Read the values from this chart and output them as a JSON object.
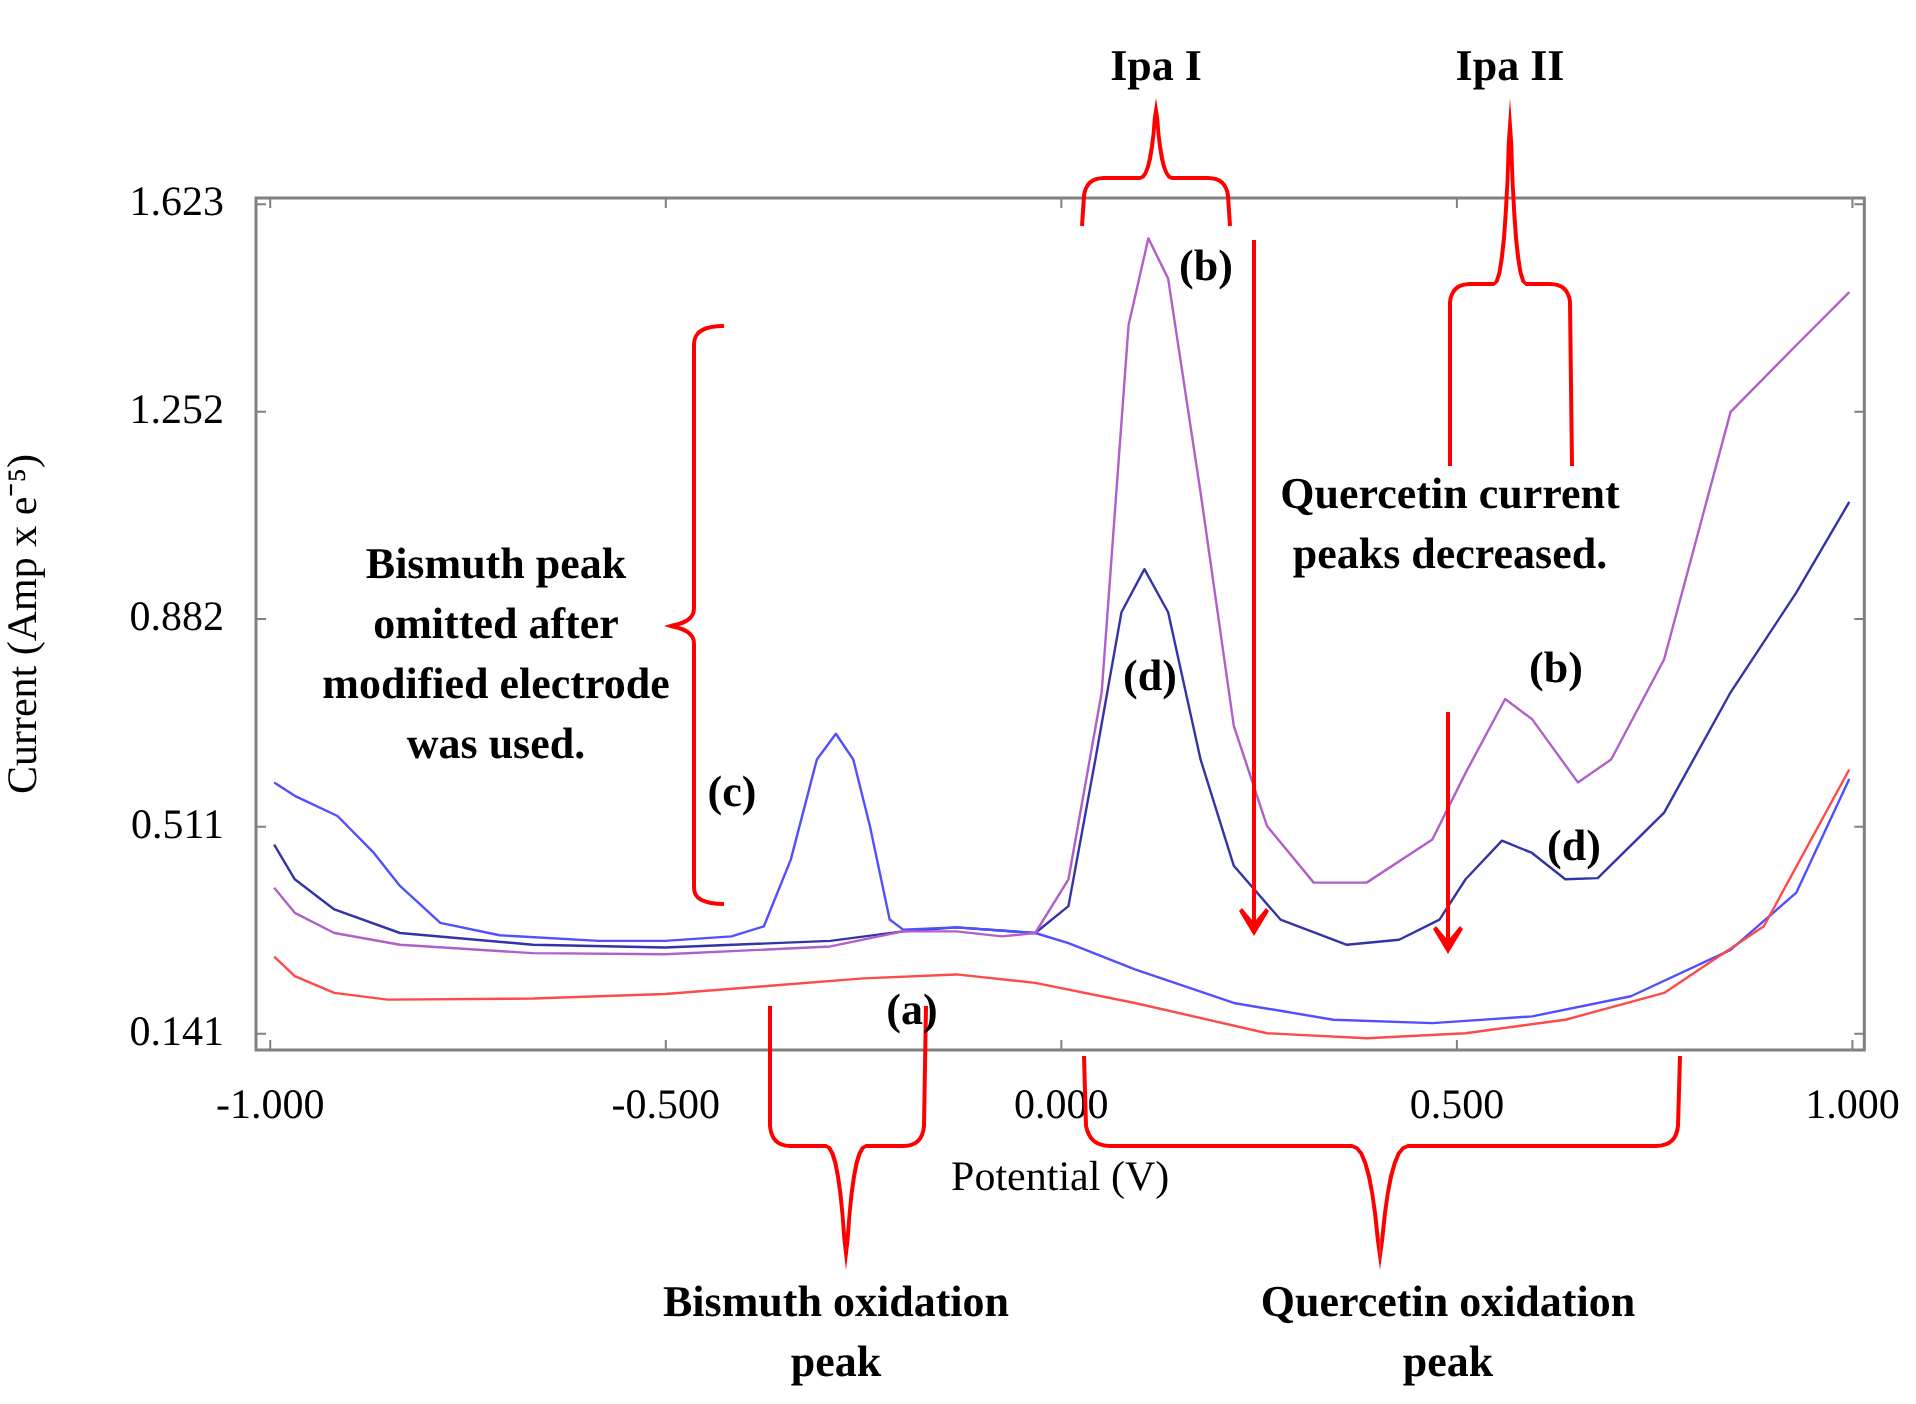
{
  "chart_data": {
    "type": "line",
    "xlabel": "Potential (V)",
    "ylabel": "Current (Amp x e⁻⁵)",
    "xlim": [
      -1.018,
      1.015
    ],
    "ylim": [
      0.112,
      1.634
    ],
    "xticks": [
      {
        "value": -1,
        "label": "-1.000"
      },
      {
        "value": -0.5,
        "label": "-0.500"
      },
      {
        "value": 0,
        "label": "0.000"
      },
      {
        "value": 0.5,
        "label": "0.500"
      },
      {
        "value": 1,
        "label": "1.000"
      }
    ],
    "yticks": [
      0.141,
      0.511,
      0.882,
      1.252,
      1.623
    ],
    "grid": false,
    "legend": false,
    "series": [
      {
        "color": "#ff4a4a",
        "x": [
          -0.995,
          -0.969,
          -0.919,
          -0.852,
          -0.668,
          -0.501,
          -0.376,
          -0.25,
          -0.133,
          -0.033,
          0.093,
          0.26,
          0.386,
          0.511,
          0.637,
          0.762,
          0.888,
          0.996
        ],
        "values": [
          0.279,
          0.244,
          0.214,
          0.202,
          0.204,
          0.212,
          0.226,
          0.24,
          0.247,
          0.232,
          0.196,
          0.142,
          0.133,
          0.142,
          0.166,
          0.214,
          0.333,
          0.613
        ]
      },
      {
        "color": "#b060c8",
        "x": [
          -0.995,
          -0.969,
          -0.919,
          -0.836,
          -0.668,
          -0.501,
          -0.292,
          -0.2,
          -0.133,
          -0.075,
          -0.033,
          0.009,
          0.051,
          0.085,
          0.11,
          0.135,
          0.176,
          0.218,
          0.26,
          0.319,
          0.386,
          0.469,
          0.511,
          0.561,
          0.595,
          0.653,
          0.695,
          0.762,
          0.846,
          0.929,
          0.996
        ],
        "values": [
          0.402,
          0.357,
          0.321,
          0.3,
          0.285,
          0.283,
          0.297,
          0.324,
          0.324,
          0.315,
          0.321,
          0.417,
          0.751,
          1.407,
          1.562,
          1.49,
          1.108,
          0.691,
          0.512,
          0.411,
          0.411,
          0.488,
          0.607,
          0.739,
          0.703,
          0.59,
          0.631,
          0.81,
          1.252,
          1.371,
          1.466
        ]
      },
      {
        "color": "#5050ff",
        "x": [
          -0.995,
          -0.969,
          -0.915,
          -0.869,
          -0.836,
          -0.785,
          -0.71,
          -0.585,
          -0.501,
          -0.417,
          -0.376,
          -0.342,
          -0.309,
          -0.285,
          -0.263,
          -0.242,
          -0.217,
          -0.2,
          -0.133,
          -0.033,
          0.009,
          0.093,
          0.218,
          0.344,
          0.469,
          0.595,
          0.72,
          0.846,
          0.929,
          0.996
        ],
        "values": [
          0.59,
          0.566,
          0.53,
          0.464,
          0.405,
          0.339,
          0.317,
          0.307,
          0.307,
          0.315,
          0.333,
          0.452,
          0.631,
          0.677,
          0.631,
          0.512,
          0.345,
          0.327,
          0.331,
          0.321,
          0.303,
          0.256,
          0.196,
          0.166,
          0.16,
          0.172,
          0.208,
          0.291,
          0.393,
          0.596
        ]
      },
      {
        "color": "#3434a8",
        "x": [
          -0.995,
          -0.969,
          -0.919,
          -0.836,
          -0.668,
          -0.501,
          -0.292,
          -0.2,
          -0.133,
          -0.033,
          0.009,
          0.043,
          0.076,
          0.105,
          0.135,
          0.176,
          0.218,
          0.277,
          0.361,
          0.427,
          0.478,
          0.511,
          0.557,
          0.595,
          0.637,
          0.678,
          0.762,
          0.846,
          0.929,
          0.996
        ],
        "values": [
          0.479,
          0.417,
          0.363,
          0.321,
          0.3,
          0.295,
          0.307,
          0.324,
          0.331,
          0.321,
          0.369,
          0.631,
          0.894,
          0.971,
          0.894,
          0.631,
          0.441,
          0.345,
          0.3,
          0.309,
          0.345,
          0.417,
          0.486,
          0.464,
          0.417,
          0.419,
          0.536,
          0.751,
          0.929,
          1.091
        ]
      }
    ],
    "annotations": [
      "Ipa I",
      "Ipa II",
      "Bismuth peak omitted after modified electrode was used.",
      "Quercetin current peaks decreased.",
      "Bismuth oxidation peak",
      "Quercetin oxidation peak",
      "(a)",
      "(b)",
      "(b)",
      "(c)",
      "(d)",
      "(d)"
    ]
  }
}
